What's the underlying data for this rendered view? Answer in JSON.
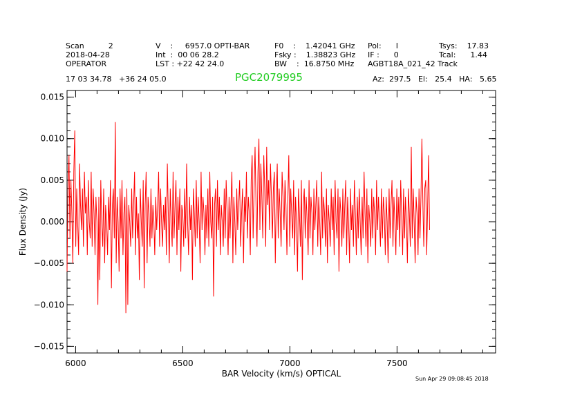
{
  "header": {
    "row1": {
      "scan": "Scan          2",
      "v": "V    :     6957.0 OPTI-BAR",
      "f0": "F0    :    1.42041 GHz",
      "pol": "Pol:      I",
      "tsys": "Tsys:    17.83"
    },
    "row2": {
      "date": "2018-04-28",
      "int": "Int  :  00 06 28.2",
      "fsky": "Fsky :    1.38823 GHz",
      "if": "IF :      0",
      "tcal": "Tcal:      1.44"
    },
    "row3": {
      "operator": "OPERATOR",
      "lst": "LST : +22 42 24.0",
      "bw": "BW    :  16.8750 MHz",
      "project": "AGBT18A_021_42 Track"
    },
    "coords": "17 03 34.78   +36 24 05.0",
    "object": "PGC2079995",
    "azelha": "Az:  297.5   El:   25.4   HA:   5.65"
  },
  "footer": {
    "timestamp": "Sun Apr 29 09:08:45 2018"
  },
  "chart_data": {
    "type": "line",
    "title": "",
    "xlabel": "BAR Velocity (km/s) OPTICAL",
    "ylabel": "Flux Density (Jy)",
    "xlim": [
      5960,
      7960
    ],
    "ylim": [
      -0.0158,
      0.0158
    ],
    "x_ticks": [
      6000,
      6500,
      7000,
      7500
    ],
    "y_ticks": [
      -0.015,
      -0.01,
      -0.005,
      0.0,
      0.005,
      0.01,
      0.015
    ],
    "y_tick_labels": [
      "−0.015",
      "−0.010",
      "−0.005",
      "0.000",
      "0.005",
      "0.010",
      "0.015"
    ],
    "x_tick_labels": [
      "6000",
      "6500",
      "7000",
      "7500"
    ],
    "series_color": "#ff0000",
    "series": [
      {
        "name": "",
        "x_start": 5960,
        "x_step": 4.5,
        "values": [
          -0.006,
          0.004,
          0.008,
          -0.002,
          0.005,
          0.001,
          -0.005,
          0.006,
          0.011,
          -0.003,
          0.004,
          0.0,
          -0.004,
          0.007,
          0.002,
          -0.001,
          0.004,
          -0.003,
          0.006,
          0.001,
          0.003,
          -0.004,
          0.005,
          0.0,
          -0.002,
          0.006,
          -0.003,
          0.004,
          0.001,
          -0.004,
          0.003,
          0.0,
          -0.01,
          0.003,
          -0.007,
          0.005,
          0.0,
          -0.003,
          0.004,
          -0.005,
          0.002,
          0.0,
          -0.004,
          0.003,
          -0.001,
          0.005,
          -0.008,
          0.002,
          0.004,
          -0.002,
          0.012,
          -0.005,
          0.003,
          0.0,
          -0.006,
          0.004,
          -0.002,
          0.005,
          -0.004,
          0.001,
          0.003,
          -0.011,
          0.004,
          -0.01,
          0.002,
          0.0,
          -0.003,
          0.004,
          -0.002,
          0.002,
          0.006,
          -0.004,
          0.003,
          -0.002,
          0.001,
          -0.007,
          0.004,
          0.0,
          -0.003,
          0.005,
          -0.008,
          0.002,
          0.006,
          -0.005,
          0.003,
          0.001,
          -0.003,
          0.004,
          -0.002,
          0.002,
          0.0,
          -0.004,
          0.003,
          -0.001,
          0.002,
          0.006,
          -0.003,
          0.004,
          0.0,
          -0.003,
          0.002,
          -0.001,
          0.003,
          -0.004,
          0.007,
          0.001,
          -0.005,
          0.004,
          0.0,
          -0.003,
          0.006,
          -0.002,
          0.002,
          0.005,
          -0.004,
          0.003,
          -0.001,
          0.004,
          -0.006,
          0.002,
          0.001,
          -0.003,
          0.004,
          -0.002,
          0.007,
          0.0,
          -0.004,
          0.003,
          -0.001,
          0.002,
          -0.007,
          0.004,
          0.001,
          -0.003,
          0.005,
          -0.002,
          0.003,
          0.0,
          -0.005,
          0.006,
          -0.001,
          0.003,
          0.001,
          -0.004,
          0.002,
          -0.002,
          0.004,
          -0.003,
          0.006,
          0.0,
          -0.002,
          0.003,
          -0.009,
          0.002,
          0.004,
          -0.003,
          0.005,
          -0.001,
          0.003,
          -0.004,
          0.002,
          0.0,
          -0.003,
          0.004,
          -0.002,
          0.005,
          0.001,
          -0.004,
          0.003,
          -0.002,
          0.002,
          0.006,
          -0.005,
          0.003,
          0.0,
          -0.004,
          0.004,
          -0.001,
          0.002,
          0.005,
          -0.003,
          0.001,
          0.004,
          -0.005,
          0.003,
          0.0,
          0.006,
          -0.002,
          0.003,
          0.001,
          -0.004,
          0.005,
          0.008,
          -0.002,
          0.004,
          0.009,
          0.002,
          -0.003,
          0.006,
          0.01,
          -0.001,
          0.007,
          0.003,
          -0.002,
          0.008,
          0.004,
          -0.003,
          0.009,
          0.002,
          0.005,
          -0.001,
          0.007,
          0.003,
          -0.002,
          0.004,
          0.006,
          -0.005,
          0.003,
          0.007,
          -0.002,
          0.004,
          0.001,
          -0.003,
          0.006,
          0.003,
          -0.001,
          0.005,
          0.002,
          -0.004,
          0.003,
          0.008,
          -0.003,
          0.004,
          0.001,
          -0.002,
          0.005,
          -0.004,
          0.003,
          0.0,
          -0.006,
          0.004,
          0.001,
          -0.003,
          0.005,
          -0.007,
          0.002,
          0.004,
          -0.002,
          0.003,
          0.0,
          -0.004,
          0.005,
          -0.002,
          0.003,
          0.001,
          -0.004,
          0.004,
          -0.001,
          0.002,
          0.005,
          -0.003,
          0.003,
          0.0,
          -0.004,
          0.006,
          -0.002,
          0.003,
          0.001,
          -0.003,
          0.004,
          -0.005,
          0.002,
          0.0,
          -0.003,
          0.004,
          -0.001,
          0.003,
          -0.004,
          0.005,
          0.0,
          -0.002,
          0.004,
          -0.006,
          0.003,
          0.001,
          -0.003,
          0.004,
          -0.002,
          0.002,
          0.005,
          -0.004,
          0.003,
          0.0,
          -0.005,
          0.004,
          -0.001,
          0.002,
          -0.003,
          0.005,
          0.001,
          -0.004,
          0.003,
          -0.002,
          0.004,
          0.0,
          -0.004,
          0.003,
          -0.002,
          0.006,
          0.001,
          -0.003,
          0.004,
          -0.005,
          0.002,
          0.0,
          -0.003,
          0.004,
          -0.002,
          0.003,
          0.001,
          -0.004,
          0.005,
          -0.001,
          0.003,
          0.0,
          -0.003,
          0.004,
          -0.002,
          0.003,
          0.001,
          -0.004,
          0.003,
          0.0,
          -0.005,
          0.004,
          -0.002,
          0.002,
          0.005,
          -0.003,
          0.003,
          0.0,
          -0.004,
          0.004,
          -0.001,
          0.003,
          -0.003,
          0.005,
          0.001,
          -0.004,
          0.004,
          -0.002,
          0.003,
          0.0,
          -0.005,
          0.004,
          0.001,
          -0.003,
          0.009,
          -0.002,
          0.004,
          0.0,
          -0.005,
          0.003,
          0.001,
          -0.004,
          0.004,
          -0.002,
          0.003,
          0.01,
          0.002,
          -0.003,
          0.004,
          0.005,
          -0.004,
          0.002,
          0.008,
          -0.001
        ]
      }
    ]
  }
}
